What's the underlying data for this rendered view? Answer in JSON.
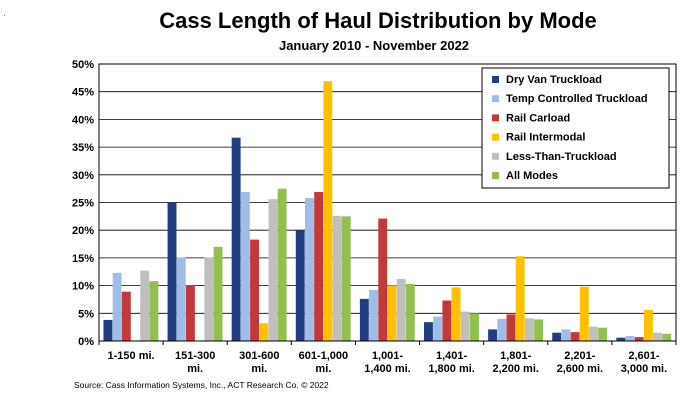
{
  "chart_data": {
    "type": "bar",
    "title": "Cass Length of Haul Distribution by Mode",
    "subtitle": "January 2010 - November 2022",
    "categories": [
      [
        "1-150 mi."
      ],
      [
        "151-300",
        "mi."
      ],
      [
        "301-600",
        "mi."
      ],
      [
        "601-1,000",
        "mi."
      ],
      [
        "1,001-",
        "1,400 mi."
      ],
      [
        "1,401-",
        "1,800 mi."
      ],
      [
        "1,801-",
        "2,200 mi."
      ],
      [
        "2,201-",
        "2,600 mi."
      ],
      [
        "2,601-",
        "3,000 mi."
      ]
    ],
    "series": [
      {
        "name": "Dry Van Truckload",
        "color": "#1f3f7f",
        "values": [
          3.8,
          25.0,
          36.7,
          20.0,
          7.6,
          3.4,
          2.1,
          1.5,
          0.6
        ]
      },
      {
        "name": "Temp Controlled Truckload",
        "color": "#9fbde6",
        "values": [
          12.3,
          15.1,
          26.9,
          25.8,
          9.2,
          4.4,
          4.0,
          2.1,
          0.9
        ]
      },
      {
        "name": "Rail Carload",
        "color": "#c0393b",
        "values": [
          8.9,
          10.0,
          18.3,
          26.9,
          22.1,
          7.3,
          4.8,
          1.6,
          0.7
        ]
      },
      {
        "name": "Rail Intermodal",
        "color": "#ffc000",
        "values": [
          0.0,
          0.0,
          3.2,
          46.9,
          10.0,
          9.7,
          15.3,
          9.8,
          5.6
        ]
      },
      {
        "name": "Less-Than-Truckload",
        "color": "#bfbfbf",
        "values": [
          12.7,
          15.1,
          25.6,
          22.6,
          11.2,
          5.3,
          4.1,
          2.6,
          1.5
        ]
      },
      {
        "name": "All Modes",
        "color": "#92c050",
        "values": [
          10.8,
          17.0,
          27.5,
          22.5,
          10.3,
          5.0,
          3.9,
          2.4,
          1.3
        ]
      }
    ],
    "yticks": [
      "0%",
      "5%",
      "10%",
      "15%",
      "20%",
      "25%",
      "30%",
      "35%",
      "40%",
      "45%",
      "50%"
    ],
    "ylim": [
      0,
      50
    ],
    "grid": true,
    "legend_position": "top-right",
    "source": "Source: Cass Information Systems, Inc., ACT Research Co. © 2022"
  },
  "corner_mark": "."
}
